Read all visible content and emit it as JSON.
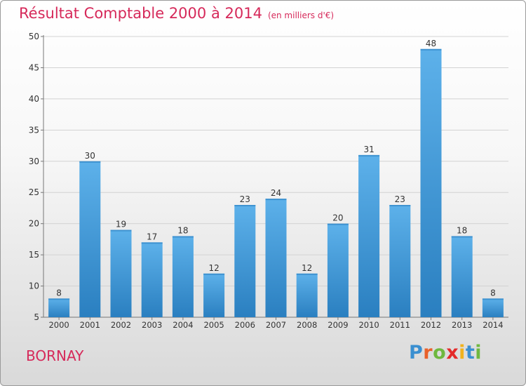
{
  "header": {
    "title": "Résultat Comptable 2000 à 2014",
    "subtitle": "(en milliers d'€)"
  },
  "footer": {
    "commune": "BORNAY",
    "logo_text": "Proxiti"
  },
  "colors": {
    "title": "#d6295a",
    "bar_top": "#5db1ea",
    "bar_bottom": "#2a7fc0",
    "logo_letters": [
      "#3a8fd0",
      "#e9612a",
      "#6fb83f",
      "#e42a2a",
      "#f0b21d",
      "#3a8fd0",
      "#6fb83f"
    ]
  },
  "chart_data": {
    "type": "bar",
    "title": "Résultat Comptable 2000 à 2014",
    "subtitle": "(en milliers d'€)",
    "categories": [
      "2000",
      "2001",
      "2002",
      "2003",
      "2004",
      "2005",
      "2006",
      "2007",
      "2008",
      "2009",
      "2010",
      "2011",
      "2012",
      "2013",
      "2014"
    ],
    "values": [
      8,
      30,
      19,
      17,
      18,
      12,
      23,
      24,
      12,
      20,
      31,
      23,
      48,
      18,
      8
    ],
    "ylim": [
      5,
      50
    ],
    "yticks": [
      5,
      10,
      15,
      20,
      25,
      30,
      35,
      40,
      45,
      50
    ],
    "grid": true,
    "data_labels": true
  }
}
